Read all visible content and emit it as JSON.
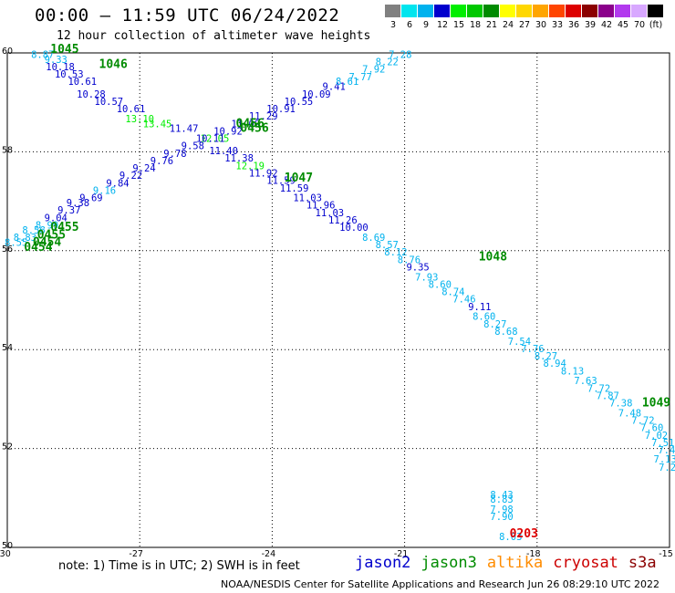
{
  "header": {
    "title": "00:00 – 11:59 UTC 06/24/2022",
    "subtitle": "12 hour collection of altimeter wave heights"
  },
  "color_scale": {
    "labels": [
      "3",
      "6",
      "9",
      "12",
      "15",
      "18",
      "21",
      "24",
      "27",
      "30",
      "33",
      "36",
      "39",
      "42",
      "45",
      "70",
      "(ft)"
    ],
    "colors": [
      "#808080",
      "#00e5ee",
      "#00b2ee",
      "#0000cd",
      "#00ee00",
      "#00c800",
      "#008b00",
      "#ffff00",
      "#ffd700",
      "#ffa500",
      "#ff4500",
      "#dd0000",
      "#8b0000",
      "#8b008b",
      "#b23aee",
      "#d8a8ff",
      "#000000"
    ]
  },
  "footer": {
    "note": "note: 1) Time is in UTC; 2) SWH is in feet",
    "satellites": [
      {
        "name": "jason2",
        "color": "#0000cc"
      },
      {
        "name": "jason3",
        "color": "#008b00"
      },
      {
        "name": "altika",
        "color": "#ff8c00"
      },
      {
        "name": "cryosat",
        "color": "#cc0000"
      },
      {
        "name": "s3a",
        "color": "#8b0000"
      }
    ],
    "credit": "NOAA/NESDIS Center for Satellite Applications and Research   Jun 26 08:29:10 UTC 2022"
  },
  "chart_data": {
    "type": "scatter",
    "xlim": [
      -30,
      -15
    ],
    "ylim": [
      50,
      60
    ],
    "x_ticks": [
      -30,
      -27,
      -24,
      -21,
      -18,
      -15
    ],
    "y_ticks": [
      50,
      52,
      54,
      56,
      58,
      60
    ],
    "grid": true,
    "points": [
      {
        "x": -29.2,
        "y": 59.9,
        "v": "8.87",
        "c": "#00b2ee"
      },
      {
        "x": -28.9,
        "y": 59.8,
        "v": "9.33",
        "c": "#00b2ee"
      },
      {
        "x": -28.8,
        "y": 59.65,
        "v": "10.18",
        "c": "#0000cd"
      },
      {
        "x": -28.6,
        "y": 59.5,
        "v": "10.53",
        "c": "#0000cd"
      },
      {
        "x": -28.3,
        "y": 59.35,
        "v": "10.61",
        "c": "#0000cd"
      },
      {
        "x": -28.1,
        "y": 59.1,
        "v": "10.28",
        "c": "#0000cd"
      },
      {
        "x": -27.7,
        "y": 58.95,
        "v": "10.57",
        "c": "#0000cd"
      },
      {
        "x": -27.2,
        "y": 58.8,
        "v": "10.61",
        "c": "#0000cd"
      },
      {
        "x": -27.0,
        "y": 58.6,
        "v": "13.10",
        "c": "#00ee00"
      },
      {
        "x": -26.6,
        "y": 58.5,
        "v": "13.45",
        "c": "#00ee00"
      },
      {
        "x": -26.0,
        "y": 58.4,
        "v": "11.47",
        "c": "#0000cd"
      },
      {
        "x": -25.3,
        "y": 58.2,
        "v": "12.05",
        "c": "#00ee00"
      },
      {
        "x": -25.1,
        "y": 57.95,
        "v": "11.40",
        "c": "#0000cd"
      },
      {
        "x": -24.75,
        "y": 57.8,
        "v": "11.38",
        "c": "#0000cd"
      },
      {
        "x": -24.5,
        "y": 57.65,
        "v": "12.19",
        "c": "#00ee00"
      },
      {
        "x": -24.2,
        "y": 57.5,
        "v": "11.92",
        "c": "#0000cd"
      },
      {
        "x": -23.8,
        "y": 57.35,
        "v": "11.59",
        "c": "#0000cd"
      },
      {
        "x": -23.5,
        "y": 57.2,
        "v": "11.59",
        "c": "#0000cd"
      },
      {
        "x": -23.2,
        "y": 57.0,
        "v": "11.03",
        "c": "#0000cd"
      },
      {
        "x": -22.9,
        "y": 56.85,
        "v": "11.96",
        "c": "#0000cd"
      },
      {
        "x": -22.7,
        "y": 56.7,
        "v": "11.03",
        "c": "#0000cd"
      },
      {
        "x": -22.4,
        "y": 56.55,
        "v": "11.26",
        "c": "#0000cd"
      },
      {
        "x": -22.15,
        "y": 56.4,
        "v": "10.00",
        "c": "#0000cd"
      },
      {
        "x": -21.7,
        "y": 56.2,
        "v": "8.69",
        "c": "#00b2ee"
      },
      {
        "x": -21.4,
        "y": 56.05,
        "v": "8.57",
        "c": "#00b2ee"
      },
      {
        "x": -21.2,
        "y": 55.9,
        "v": "8.12",
        "c": "#00b2ee"
      },
      {
        "x": -20.9,
        "y": 55.75,
        "v": "8.76",
        "c": "#00b2ee"
      },
      {
        "x": -20.7,
        "y": 55.6,
        "v": "9.35",
        "c": "#0000cd"
      },
      {
        "x": -20.5,
        "y": 55.4,
        "v": "7.93",
        "c": "#00b2ee"
      },
      {
        "x": -20.2,
        "y": 55.25,
        "v": "8.60",
        "c": "#00b2ee"
      },
      {
        "x": -19.9,
        "y": 55.1,
        "v": "8.74",
        "c": "#00b2ee"
      },
      {
        "x": -19.65,
        "y": 54.95,
        "v": "7.46",
        "c": "#00b2ee"
      },
      {
        "x": -19.3,
        "y": 54.8,
        "v": "9.11",
        "c": "#0000cd"
      },
      {
        "x": -19.2,
        "y": 54.6,
        "v": "8.60",
        "c": "#00b2ee"
      },
      {
        "x": -18.95,
        "y": 54.45,
        "v": "8.27",
        "c": "#00b2ee"
      },
      {
        "x": -18.7,
        "y": 54.3,
        "v": "8.68",
        "c": "#00b2ee"
      },
      {
        "x": -18.4,
        "y": 54.1,
        "v": "7.54",
        "c": "#00b2ee"
      },
      {
        "x": -18.1,
        "y": 53.95,
        "v": "7.76",
        "c": "#00b2ee"
      },
      {
        "x": -17.8,
        "y": 53.8,
        "v": "8.27",
        "c": "#00b2ee"
      },
      {
        "x": -17.6,
        "y": 53.65,
        "v": "8.94",
        "c": "#00b2ee"
      },
      {
        "x": -17.2,
        "y": 53.5,
        "v": "8.13",
        "c": "#00b2ee"
      },
      {
        "x": -16.9,
        "y": 53.3,
        "v": "7.63",
        "c": "#00b2ee"
      },
      {
        "x": -16.6,
        "y": 53.15,
        "v": "7.72",
        "c": "#00b2ee"
      },
      {
        "x": -16.4,
        "y": 53.0,
        "v": "7.87",
        "c": "#00b2ee"
      },
      {
        "x": -16.1,
        "y": 52.85,
        "v": "7.38",
        "c": "#00b2ee"
      },
      {
        "x": -15.9,
        "y": 52.65,
        "v": "7.48",
        "c": "#00b2ee"
      },
      {
        "x": -15.6,
        "y": 52.5,
        "v": "7.72",
        "c": "#00b2ee"
      },
      {
        "x": -15.4,
        "y": 52.35,
        "v": "7.60",
        "c": "#00b2ee"
      },
      {
        "x": -15.3,
        "y": 52.2,
        "v": "7.02",
        "c": "#00b2ee"
      },
      {
        "x": -15.15,
        "y": 52.05,
        "v": "7.51",
        "c": "#00b2ee"
      },
      {
        "x": -15.0,
        "y": 51.9,
        "v": "7.44",
        "c": "#00b2ee"
      },
      {
        "x": -15.1,
        "y": 51.72,
        "v": "7.13",
        "c": "#00b2ee"
      },
      {
        "x": -15.05,
        "y": 51.55,
        "v": "7.2",
        "c": "#00b2ee"
      },
      {
        "x": -29.8,
        "y": 56.1,
        "v": "8.55",
        "c": "#00b2ee"
      },
      {
        "x": -29.6,
        "y": 56.2,
        "v": "8.83",
        "c": "#00b2ee"
      },
      {
        "x": -29.4,
        "y": 56.35,
        "v": "8.56",
        "c": "#00b2ee"
      },
      {
        "x": -29.1,
        "y": 56.45,
        "v": "8.99",
        "c": "#00b2ee"
      },
      {
        "x": -28.9,
        "y": 56.6,
        "v": "9.04",
        "c": "#0000cd"
      },
      {
        "x": -28.6,
        "y": 56.75,
        "v": "9.37",
        "c": "#0000cd"
      },
      {
        "x": -28.4,
        "y": 56.9,
        "v": "9.38",
        "c": "#0000cd"
      },
      {
        "x": -28.1,
        "y": 57.0,
        "v": "9.69",
        "c": "#0000cd"
      },
      {
        "x": -27.8,
        "y": 57.15,
        "v": "9.16",
        "c": "#00b2ee"
      },
      {
        "x": -27.5,
        "y": 57.3,
        "v": "9.84",
        "c": "#0000cd"
      },
      {
        "x": -27.2,
        "y": 57.45,
        "v": "9.22",
        "c": "#0000cd"
      },
      {
        "x": -26.9,
        "y": 57.6,
        "v": "9.24",
        "c": "#0000cd"
      },
      {
        "x": -26.5,
        "y": 57.75,
        "v": "9.76",
        "c": "#0000cd"
      },
      {
        "x": -26.2,
        "y": 57.9,
        "v": "9.78",
        "c": "#0000cd"
      },
      {
        "x": -25.8,
        "y": 58.05,
        "v": "9.58",
        "c": "#0000cd"
      },
      {
        "x": -25.4,
        "y": 58.2,
        "v": "10.11",
        "c": "#0000cd"
      },
      {
        "x": -25.0,
        "y": 58.35,
        "v": "10.92",
        "c": "#0000cd"
      },
      {
        "x": -24.6,
        "y": 58.5,
        "v": "11.09",
        "c": "#0000cd"
      },
      {
        "x": -24.2,
        "y": 58.65,
        "v": "11.29",
        "c": "#0000cd"
      },
      {
        "x": -23.8,
        "y": 58.8,
        "v": "10.91",
        "c": "#0000cd"
      },
      {
        "x": -23.4,
        "y": 58.95,
        "v": "10.55",
        "c": "#0000cd"
      },
      {
        "x": -23.0,
        "y": 59.1,
        "v": "10.09",
        "c": "#0000cd"
      },
      {
        "x": -22.6,
        "y": 59.25,
        "v": "9.41",
        "c": "#0000cd"
      },
      {
        "x": -22.3,
        "y": 59.35,
        "v": "8.61",
        "c": "#00b2ee"
      },
      {
        "x": -22.0,
        "y": 59.45,
        "v": "7.77",
        "c": "#00b2ee"
      },
      {
        "x": -21.7,
        "y": 59.6,
        "v": "7.92",
        "c": "#00b2ee"
      },
      {
        "x": -21.4,
        "y": 59.75,
        "v": "8.22",
        "c": "#00b2ee"
      },
      {
        "x": -21.1,
        "y": 59.9,
        "v": "7.28",
        "c": "#00b2ee"
      },
      {
        "x": -18.8,
        "y": 51.0,
        "v": "8.43",
        "c": "#00b2ee"
      },
      {
        "x": -18.8,
        "y": 50.9,
        "v": "8.83",
        "c": "#00b2ee"
      },
      {
        "x": -18.8,
        "y": 50.7,
        "v": "7.98",
        "c": "#00b2ee"
      },
      {
        "x": -18.8,
        "y": 50.55,
        "v": "7.90",
        "c": "#00b2ee"
      },
      {
        "x": -18.6,
        "y": 50.15,
        "v": "8.03",
        "c": "#00b2ee"
      }
    ],
    "time_labels": [
      {
        "x": -28.7,
        "y": 60.0,
        "v": "1045",
        "c": "#008b00"
      },
      {
        "x": -27.6,
        "y": 59.7,
        "v": "1046",
        "c": "#008b00"
      },
      {
        "x": -23.4,
        "y": 57.4,
        "v": "1047",
        "c": "#008b00"
      },
      {
        "x": -19.0,
        "y": 55.8,
        "v": "1048",
        "c": "#008b00"
      },
      {
        "x": -15.3,
        "y": 52.85,
        "v": "1049",
        "c": "#008b00"
      },
      {
        "x": -24.5,
        "y": 58.5,
        "v": "0456",
        "c": "#008b00"
      },
      {
        "x": -24.4,
        "y": 58.4,
        "v": "0456",
        "c": "#008b00"
      },
      {
        "x": -28.7,
        "y": 56.4,
        "v": "0455",
        "c": "#008b00"
      },
      {
        "x": -29.0,
        "y": 56.25,
        "v": "0455",
        "c": "#008b00"
      },
      {
        "x": -29.1,
        "y": 56.1,
        "v": "0454",
        "c": "#008b00"
      },
      {
        "x": -29.3,
        "y": 56.0,
        "v": "0454",
        "c": "#008b00"
      },
      {
        "x": -18.3,
        "y": 50.2,
        "v": "0203",
        "c": "#dd0000"
      }
    ]
  }
}
